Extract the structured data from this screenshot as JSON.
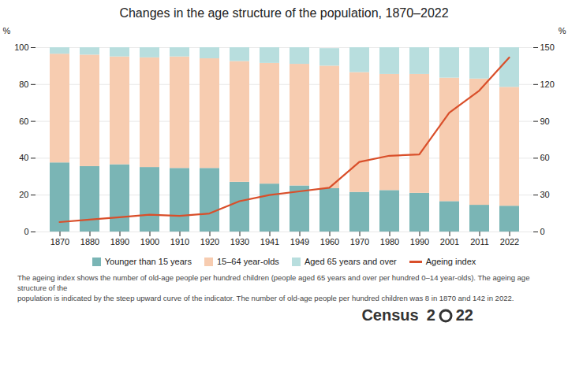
{
  "chart_data": {
    "type": "bar",
    "stacked": true,
    "title": "Changes in the age structure of the population, 1870–2022",
    "categories": [
      "1870",
      "1880",
      "1890",
      "1900",
      "1910",
      "1920",
      "1930",
      "1941",
      "1949",
      "1960",
      "1970",
      "1980",
      "1990",
      "2001",
      "2011",
      "2022"
    ],
    "series": [
      {
        "name": "Younger than 15 years",
        "type": "bar",
        "color": "#7ab5b5",
        "values": [
          37.5,
          35.5,
          36.5,
          35.0,
          34.5,
          34.5,
          27.0,
          26.0,
          25.0,
          23.5,
          21.5,
          22.5,
          21.0,
          16.5,
          14.5,
          14.0
        ]
      },
      {
        "name": "15–64 year-olds",
        "type": "bar",
        "color": "#f7ccb0",
        "values": [
          59.0,
          60.5,
          58.5,
          59.5,
          60.5,
          59.5,
          65.5,
          65.5,
          66.0,
          66.5,
          65.0,
          63.0,
          64.5,
          67.0,
          68.5,
          64.5
        ]
      },
      {
        "name": "Aged 65 years and over",
        "type": "bar",
        "color": "#b8dede",
        "values": [
          3.5,
          4.0,
          5.0,
          5.5,
          5.0,
          6.0,
          7.5,
          8.5,
          9.0,
          9.5,
          13.5,
          14.5,
          14.5,
          16.5,
          17.0,
          21.5
        ]
      },
      {
        "name": "Ageing index",
        "type": "line",
        "axis": "y2",
        "color": "#d94f2a",
        "values": [
          8,
          10,
          12,
          14,
          13,
          15,
          25,
          30,
          33,
          36,
          57,
          62,
          63,
          97,
          115,
          142
        ]
      }
    ],
    "ylim": [
      0,
      100
    ],
    "yticks": [
      0,
      20,
      40,
      60,
      80,
      100
    ],
    "y2lim": [
      0,
      150
    ],
    "y2ticks": [
      0,
      30,
      60,
      90,
      120,
      150
    ],
    "ylabel": "%",
    "y2label": "%",
    "grid": true,
    "legend": "bottom",
    "annotations": [
      "The ageing index shows the number of old-age people per hundred children (people aged 65 years and over per hundred 0–14 year-olds). The ageing age structure of the",
      "population is indicated by the steep upward curve of the indicator. The number of old-age people per hundred children was 8 in 1870 and 142 in 2022.",
      "Census",
      "2",
      "22"
    ]
  }
}
